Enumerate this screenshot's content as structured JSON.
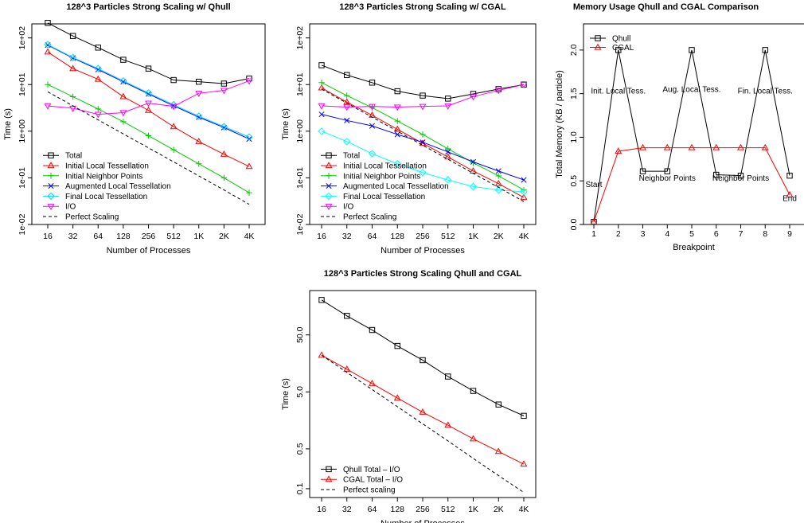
{
  "chart_data": [
    {
      "id": "qhull",
      "type": "line",
      "log_y": true,
      "title": "128^3 Particles Strong Scaling w/ Qhull",
      "xlabel": "Number of Processes",
      "ylabel": "Time (s)",
      "categories": [
        "16",
        "32",
        "64",
        "128",
        "256",
        "512",
        "1K",
        "2K",
        "4K"
      ],
      "ylim": [
        0.01,
        200
      ],
      "y_ticks": [
        "1e-02",
        "1e-01",
        "1e+00",
        "1e+01",
        "1e+02"
      ],
      "legend_position": "bottom-left",
      "series": [
        {
          "name": "Total",
          "color": "#000000",
          "marker": "square",
          "values": [
            210,
            110,
            62,
            34,
            22,
            12.5,
            11.5,
            10.5,
            13.5
          ]
        },
        {
          "name": "Initial Local Tessellation",
          "color": "#ff0000",
          "marker": "triangle-up",
          "values": [
            50,
            22,
            13,
            5.5,
            2.8,
            1.25,
            0.6,
            0.32,
            0.175
          ]
        },
        {
          "name": "Initial Neighbor Points",
          "color": "#00cc00",
          "marker": "plus",
          "values": [
            10,
            5.5,
            3.0,
            1.6,
            0.8,
            0.4,
            0.2,
            0.1,
            0.048
          ]
        },
        {
          "name": "Augmented Local Tessellation",
          "color": "#0000ff",
          "marker": "x",
          "values": [
            70,
            37,
            21,
            11.5,
            6.3,
            3.5,
            2.0,
            1.2,
            0.68
          ]
        },
        {
          "name": "Final Local Tessellation",
          "color": "#00d7ff",
          "marker": "diamond",
          "values": [
            72,
            38,
            22,
            12,
            6.6,
            3.7,
            2.1,
            1.25,
            0.75
          ]
        },
        {
          "name": "I/O",
          "color": "#ff00ff",
          "marker": "triangle-down",
          "values": [
            3.5,
            3.1,
            2.3,
            2.5,
            4.0,
            3.4,
            6.5,
            7.5,
            12
          ]
        },
        {
          "name": "Perfect Scaling",
          "color": "#000000",
          "dashed": true,
          "values": [
            7.0,
            3.5,
            1.75,
            0.875,
            0.44,
            0.22,
            0.11,
            0.055,
            0.027
          ]
        }
      ]
    },
    {
      "id": "cgal",
      "type": "line",
      "log_y": true,
      "title": "128^3 Particles Strong Scaling w/ CGAL",
      "xlabel": "Number of Processes",
      "ylabel": "Time (s)",
      "categories": [
        "16",
        "32",
        "64",
        "128",
        "256",
        "512",
        "1K",
        "2K",
        "4K"
      ],
      "ylim": [
        0.01,
        200
      ],
      "y_ticks": [
        "1e-02",
        "1e-01",
        "1e+00",
        "1e+01",
        "1e+02"
      ],
      "legend_position": "bottom-left",
      "series": [
        {
          "name": "Total",
          "color": "#000000",
          "marker": "square",
          "values": [
            26,
            16,
            11,
            7.2,
            5.8,
            5.0,
            6.3,
            8.0,
            10
          ]
        },
        {
          "name": "Initial Local Tessellation",
          "color": "#ff0000",
          "marker": "triangle-up",
          "values": [
            8.5,
            4.2,
            2.2,
            1.1,
            0.55,
            0.28,
            0.14,
            0.075,
            0.038
          ]
        },
        {
          "name": "Initial Neighbor Points",
          "color": "#00cc00",
          "marker": "plus",
          "values": [
            11,
            5.8,
            3.2,
            1.65,
            0.85,
            0.42,
            0.21,
            0.11,
            0.055
          ]
        },
        {
          "name": "Augmented Local Tessellation",
          "color": "#0000ff",
          "marker": "x",
          "values": [
            2.3,
            1.7,
            1.3,
            0.85,
            0.58,
            0.36,
            0.22,
            0.14,
            0.09
          ]
        },
        {
          "name": "Final Local Tessellation",
          "color": "#00ffff",
          "marker": "diamond",
          "values": [
            1.0,
            0.6,
            0.33,
            0.2,
            0.13,
            0.09,
            0.065,
            0.055,
            0.05
          ]
        },
        {
          "name": "I/O",
          "color": "#ff00ff",
          "marker": "triangle-down",
          "values": [
            3.5,
            3.3,
            3.4,
            3.3,
            3.4,
            3.5,
            5.5,
            7.5,
            10
          ]
        },
        {
          "name": "Perfect Scaling",
          "color": "#000000",
          "dashed": true,
          "values": [
            8.0,
            4.0,
            2.0,
            1.0,
            0.5,
            0.25,
            0.125,
            0.0625,
            0.031
          ]
        }
      ]
    },
    {
      "id": "memory",
      "type": "line",
      "log_y": false,
      "title": "Memory Usage Qhull and CGAL Comparison",
      "xlabel": "Breakpoint",
      "ylabel": "Total Memory (KB / particle)",
      "categories": [
        "1",
        "2",
        "3",
        "4",
        "5",
        "6",
        "7",
        "8",
        "9"
      ],
      "ylim": [
        0,
        2.3
      ],
      "y_ticks": [
        "0.0",
        "0.5",
        "1.0",
        "1.5",
        "2.0"
      ],
      "legend_position": "top-left",
      "series": [
        {
          "name": "Qhull",
          "color": "#000000",
          "marker": "square",
          "values": [
            0.03,
            2.0,
            0.61,
            0.61,
            2.0,
            0.57,
            0.56,
            2.0,
            0.56
          ]
        },
        {
          "name": "CGAL",
          "color": "#ff0000",
          "marker": "triangle-up",
          "values": [
            0.03,
            0.84,
            0.88,
            0.88,
            0.88,
            0.88,
            0.88,
            0.88,
            0.34
          ]
        }
      ],
      "annotations": [
        {
          "text": "Start",
          "x": 1,
          "y": 0.43
        },
        {
          "text": "Init. Local Tess.",
          "x": 2,
          "y": 1.5
        },
        {
          "text": "Neighbor Points",
          "x": 4,
          "y": 0.5
        },
        {
          "text": "Aug. Local Tess.",
          "x": 5,
          "y": 1.52
        },
        {
          "text": "Neighbor Points",
          "x": 7,
          "y": 0.5
        },
        {
          "text": "Fin. Local Tess.",
          "x": 8,
          "y": 1.5
        },
        {
          "text": "End",
          "x": 9,
          "y": 0.27
        }
      ]
    },
    {
      "id": "compare",
      "type": "line",
      "log_y": true,
      "title": "128^3 Particles Strong Scaling Qhull and CGAL",
      "xlabel": "Number of Processes",
      "ylabel": "Time (s)",
      "categories": [
        "16",
        "32",
        "64",
        "128",
        "256",
        "512",
        "1K",
        "2K",
        "4K"
      ],
      "ylim": [
        0.07,
        300
      ],
      "y_ticks": [
        "0.1",
        "0.5",
        "5.0",
        "50.0"
      ],
      "legend_position": "bottom-left",
      "series": [
        {
          "name": "Qhull Total – I/O",
          "color": "#000000",
          "marker": "square",
          "values": [
            205,
            108,
            61,
            32,
            18,
            9.3,
            5.2,
            3.0,
            1.9
          ]
        },
        {
          "name": "CGAL Total – I/O",
          "color": "#ff0000",
          "marker": "triangle-up",
          "values": [
            22,
            12.5,
            7.0,
            3.9,
            2.2,
            1.3,
            0.75,
            0.45,
            0.27
          ]
        },
        {
          "name": "Perfect scaling",
          "color": "#000000",
          "dashed": true,
          "values": [
            22,
            11,
            5.5,
            2.75,
            1.375,
            0.69,
            0.34,
            0.17,
            0.086
          ]
        }
      ]
    }
  ]
}
